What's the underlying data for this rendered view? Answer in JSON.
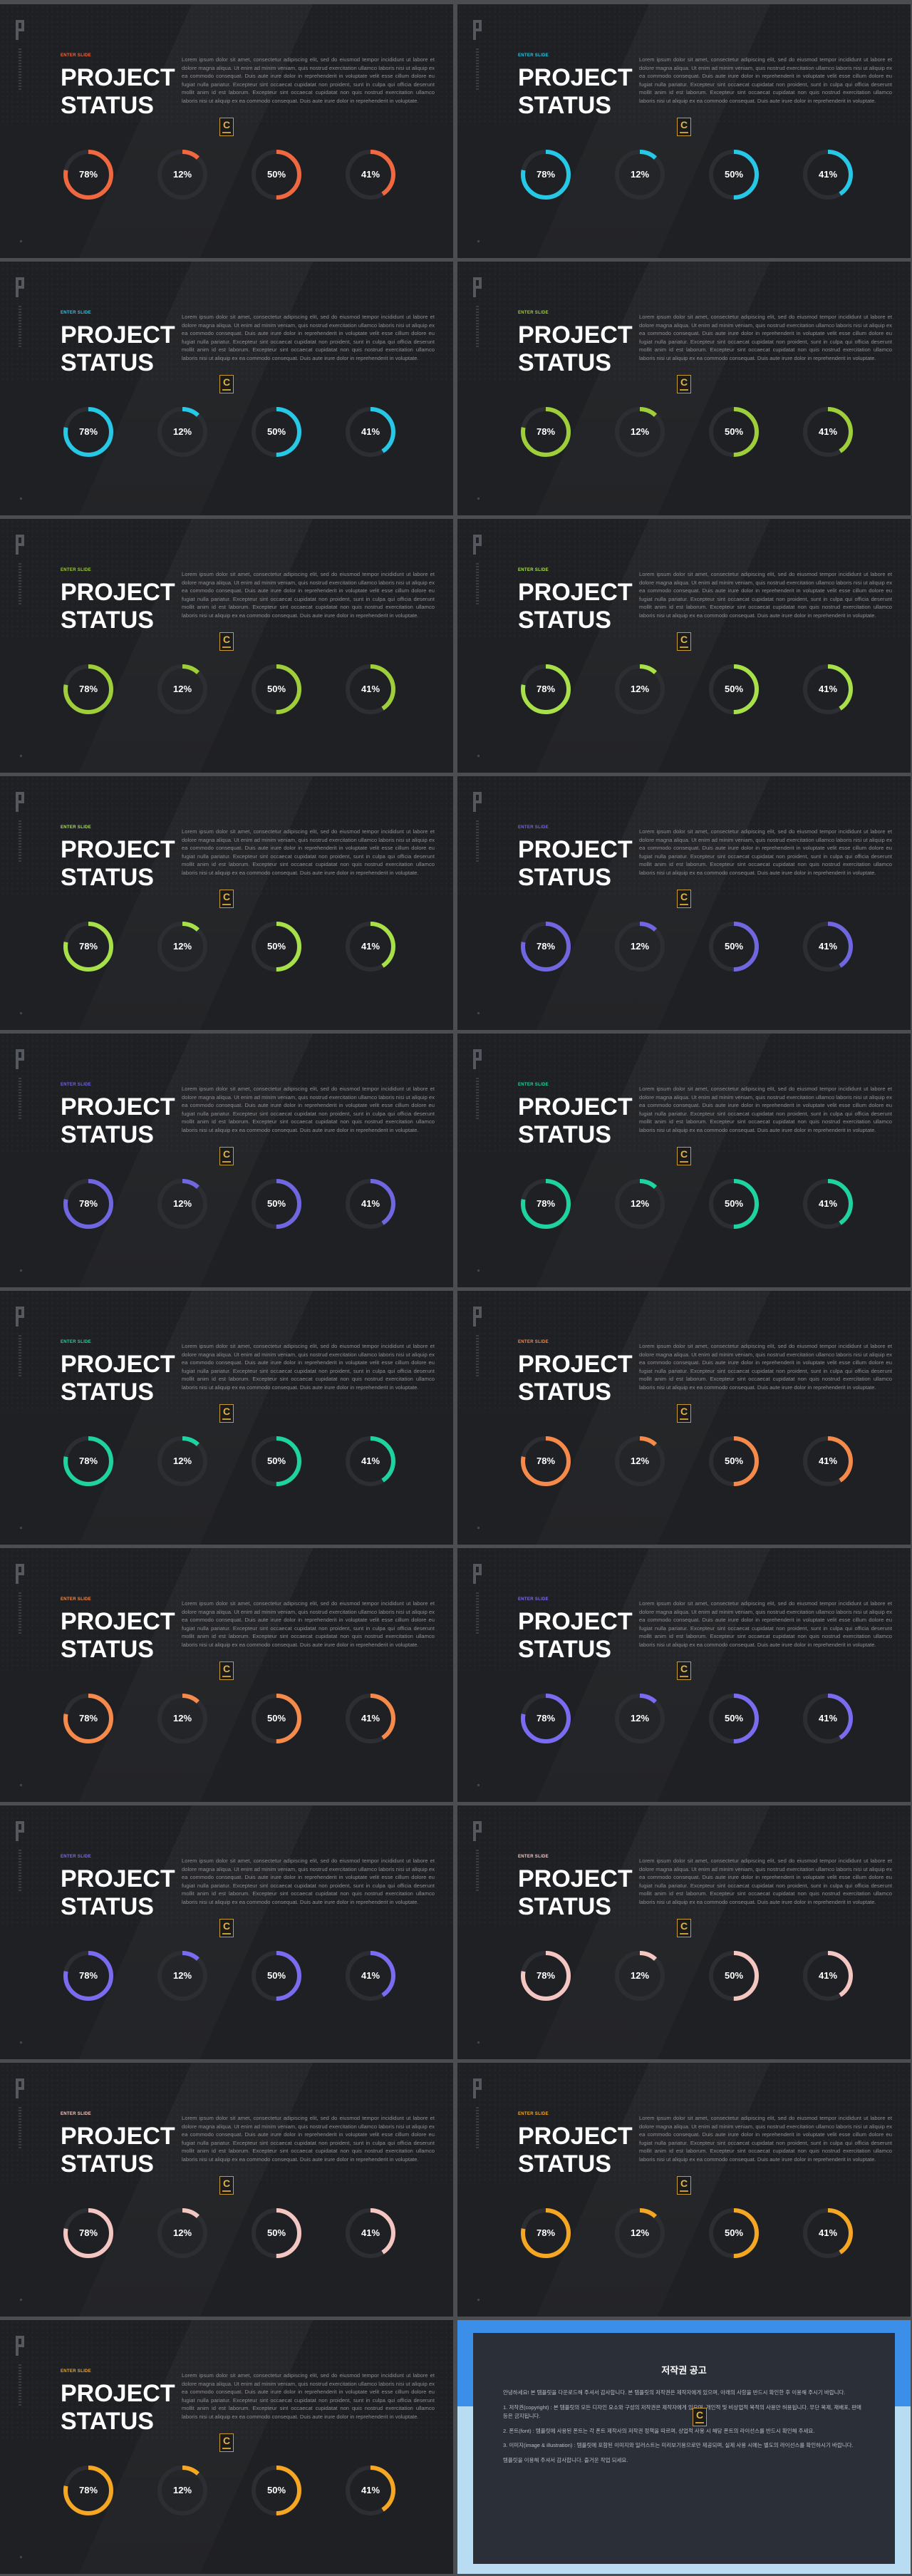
{
  "slides": [
    {
      "badge": "ENTER SLIDE",
      "title_line1": "PROJECT",
      "title_line2": "STATUS",
      "accent": "#f0683f"
    },
    {
      "badge": "ENTER SLIDE",
      "title_line1": "PROJECT",
      "title_line2": "STATUS",
      "accent": "#27c7e6"
    },
    {
      "badge": "ENTER SLIDE",
      "title_line1": "PROJECT",
      "title_line2": "STATUS",
      "accent": "#27c7e6"
    },
    {
      "badge": "ENTER SLIDE",
      "title_line1": "PROJECT",
      "title_line2": "STATUS",
      "accent": "#9ecf3a"
    },
    {
      "badge": "ENTER SLIDE",
      "title_line1": "PROJECT",
      "title_line2": "STATUS",
      "accent": "#9ecf3a"
    },
    {
      "badge": "ENTER SLIDE",
      "title_line1": "PROJECT",
      "title_line2": "STATUS",
      "accent": "#a8e04a"
    },
    {
      "badge": "ENTER SLIDE",
      "title_line1": "PROJECT",
      "title_line2": "STATUS",
      "accent": "#a8e04a"
    },
    {
      "badge": "ENTER SLIDE",
      "title_line1": "PROJECT",
      "title_line2": "STATUS",
      "accent": "#6f66e0"
    },
    {
      "badge": "ENTER SLIDE",
      "title_line1": "PROJECT",
      "title_line2": "STATUS",
      "accent": "#6f66e0"
    },
    {
      "badge": "ENTER SLIDE",
      "title_line1": "PROJECT",
      "title_line2": "STATUS",
      "accent": "#1fd3a0"
    },
    {
      "badge": "ENTER SLIDE",
      "title_line1": "PROJECT",
      "title_line2": "STATUS",
      "accent": "#1fd3a0"
    },
    {
      "badge": "ENTER SLIDE",
      "title_line1": "PROJECT",
      "title_line2": "STATUS",
      "accent": "#f58a4b"
    },
    {
      "badge": "ENTER SLIDE",
      "title_line1": "PROJECT",
      "title_line2": "STATUS",
      "accent": "#f58a4b"
    },
    {
      "badge": "ENTER SLIDE",
      "title_line1": "PROJECT",
      "title_line2": "STATUS",
      "accent": "#7a6cf0"
    },
    {
      "badge": "ENTER SLIDE",
      "title_line1": "PROJECT",
      "title_line2": "STATUS",
      "accent": "#7a6cf0"
    },
    {
      "badge": "ENTER SLIDE",
      "title_line1": "PROJECT",
      "title_line2": "STATUS",
      "accent": "#f4c6c2"
    },
    {
      "badge": "ENTER SLIDE",
      "title_line1": "PROJECT",
      "title_line2": "STATUS",
      "accent": "#f4c6c2"
    },
    {
      "badge": "ENTER SLIDE",
      "title_line1": "PROJECT",
      "title_line2": "STATUS",
      "accent": "#f5a623"
    },
    {
      "badge": "ENTER SLIDE",
      "title_line1": "PROJECT",
      "title_line2": "STATUS",
      "accent": "#f5a623"
    }
  ],
  "body_text": "Lorem ipsum dolor sit amet, consectetur adipiscing elit, sed do eiusmod tempor incididunt ut labore et dolore magna aliqua. Ut enim ad minim veniam, quis nostrud exercitation ullamco laboris nisi ut aliquip ex ea commodo consequat. Duis aute irure dolor in reprehenderit in voluptate velit esse cillum dolore eu fugiat nulla pariatur. Excepteur sint occaecat cupidatat non proident, sunt in culpa qui officia deserunt mollit anim id est laborum. Excepteur sint occaecat cupidatat non quis nostrud exercitation ullamco laboris nisi ut aliquip ex ea commodo consequat. Duis aute irure dolor in reprehenderit in voluptate.",
  "watermark_letter": "C",
  "metrics": [
    {
      "label": "78%",
      "value": 0.78
    },
    {
      "label": "12%",
      "value": 0.12
    },
    {
      "label": "50%",
      "value": 0.5
    },
    {
      "label": "41%",
      "value": 0.41
    }
  ],
  "notice": {
    "title": "저작권 공고",
    "paragraphs": [
      "안녕하세요! 본 템플릿을 다운로드해 주셔서 감사합니다. 본 템플릿의 저작권은 제작자에게 있으며, 아래의 사항을 반드시 확인한 후 이용해 주시기 바랍니다.",
      "1. 저작권(copyright) : 본 템플릿의 모든 디자인 요소와 구성의 저작권은 제작자에게 있으며, 개인적 및 비상업적 목적의 사용만 허용됩니다. 무단 복제, 재배포, 판매 등은 금지됩니다.",
      "2. 폰트(font) : 템플릿에 사용된 폰트는 각 폰트 제작사의 저작권 정책을 따르며, 상업적 사용 시 해당 폰트의 라이선스를 반드시 확인해 주세요.",
      "3. 이미지(image & illustration) : 템플릿에 포함된 이미지와 일러스트는 미리보기용으로만 제공되며, 실제 사용 시에는 별도의 라이선스를 확인하시기 바랍니다.",
      "템플릿을 이용해 주셔서 감사합니다. 즐거운 작업 되세요."
    ]
  }
}
